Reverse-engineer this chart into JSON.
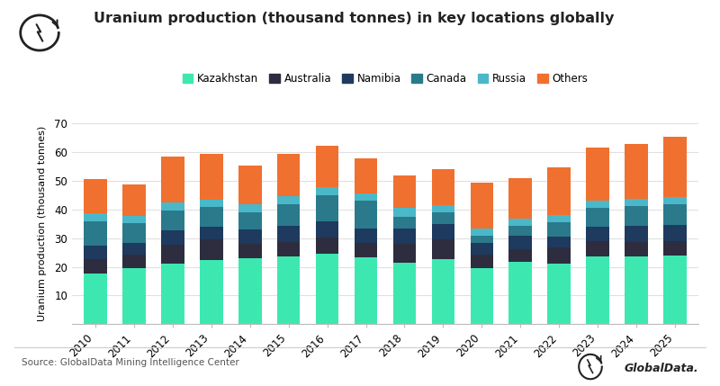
{
  "years": [
    2010,
    2011,
    2012,
    2013,
    2014,
    2015,
    2016,
    2017,
    2018,
    2019,
    2020,
    2021,
    2022,
    2023,
    2024,
    2025
  ],
  "Kazakhstan": [
    17.8,
    19.5,
    21.0,
    22.5,
    23.0,
    23.8,
    24.6,
    23.3,
    21.5,
    22.8,
    19.5,
    21.8,
    21.2,
    23.5,
    23.8,
    24.0
  ],
  "Australia": [
    5.0,
    4.8,
    6.8,
    7.0,
    5.0,
    5.0,
    5.5,
    5.2,
    6.5,
    6.8,
    4.8,
    4.5,
    5.5,
    5.5,
    5.0,
    5.0
  ],
  "Namibia": [
    4.5,
    4.0,
    4.8,
    4.5,
    5.0,
    5.5,
    5.8,
    5.0,
    5.5,
    5.5,
    4.0,
    4.5,
    4.0,
    5.0,
    5.5,
    5.5
  ],
  "Canada": [
    8.5,
    7.0,
    7.2,
    7.0,
    6.0,
    7.5,
    9.0,
    9.5,
    4.0,
    4.0,
    2.5,
    3.5,
    5.0,
    6.5,
    7.0,
    7.5
  ],
  "Russia": [
    2.8,
    2.5,
    2.8,
    2.5,
    2.8,
    3.0,
    3.0,
    2.5,
    3.0,
    2.5,
    2.5,
    2.5,
    2.5,
    2.5,
    2.5,
    2.5
  ],
  "Others": [
    12.0,
    11.0,
    16.0,
    16.0,
    13.5,
    14.5,
    14.5,
    12.5,
    11.5,
    12.5,
    16.0,
    14.0,
    16.5,
    18.5,
    19.0,
    21.0
  ],
  "colors": {
    "Kazakhstan": "#3de8b0",
    "Australia": "#2d2d3f",
    "Namibia": "#1e3a5f",
    "Canada": "#2a7a8c",
    "Russia": "#4ab8c8",
    "Others": "#f07030"
  },
  "title": "Uranium production (thousand tonnes) in key locations globally",
  "ylabel": "Uranium production (thousand tonnes)",
  "source": "Source: GlobalData Mining Intelligence Center",
  "ylim": [
    0,
    70
  ],
  "yticks": [
    0,
    10,
    20,
    30,
    40,
    50,
    60,
    70
  ]
}
